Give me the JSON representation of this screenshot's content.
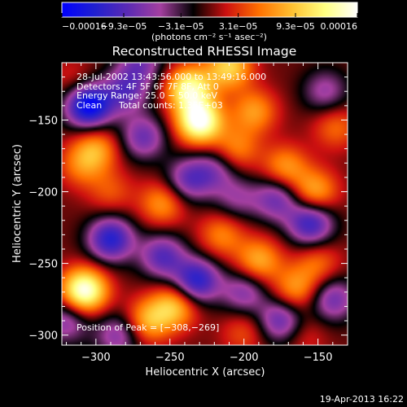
{
  "chart_data": {
    "type": "heatmap",
    "title": "Reconstructed RHESSI Image",
    "xlabel": "Heliocentric X (arcsec)",
    "ylabel": "Heliocentric Y (arcsec)",
    "xlim": [
      -323,
      -130
    ],
    "ylim": [
      -307,
      -110
    ],
    "xticks": [
      -300,
      -250,
      -200,
      -150
    ],
    "yticks": [
      -300,
      -250,
      -200,
      -150
    ],
    "xtick_labels": [
      "−300",
      "−250",
      "−200",
      "−150"
    ],
    "ytick_labels": [
      "−300",
      "−250",
      "−200",
      "−150"
    ],
    "colorbar": {
      "min": -0.00016,
      "max": 0.00016,
      "ticks": [
        -0.00016,
        -9.3e-05,
        -3.1e-05,
        3.1e-05,
        9.3e-05,
        0.00016
      ],
      "tick_labels": [
        "−0.00016",
        "−9.3e−05",
        "−3.1e−05",
        "3.1e−05",
        "9.3e−05",
        "0.00016"
      ],
      "unit_label": "(photons cm⁻² s⁻¹ asec⁻²)",
      "colors": [
        "#0000ff",
        "#2020d0",
        "#5a2ab4",
        "#a43fa0",
        "#000000",
        "#cc1010",
        "#ff7000",
        "#ffc030",
        "#ffff80",
        "#ffffff"
      ]
    },
    "annotations": {
      "time_range": "28-Jul-2002 13:43:56.000 to 13:49:16.000",
      "detectors": "Detectors: 4F 5F 6F 7F 8F, Att 0",
      "energy": "Energy Range: 25.0 − 50.0 keV",
      "method": "Clean",
      "total_counts": "Total counts: 1.35E+03",
      "peak": "Position of Peak = [−308,−269]"
    },
    "peak_position": [
      -308,
      -269
    ],
    "hotspots": [
      {
        "x": -230,
        "y": -151,
        "value": 0.00016
      },
      {
        "x": -237,
        "y": -128,
        "value": 0.00013
      },
      {
        "x": -210,
        "y": -113,
        "value": 0.0001
      },
      {
        "x": -308,
        "y": -269,
        "value": 0.00016
      },
      {
        "x": -247,
        "y": -280,
        "value": 9e-05
      },
      {
        "x": -265,
        "y": -290,
        "value": 8e-05
      },
      {
        "x": -255,
        "y": -208,
        "value": 7e-05
      },
      {
        "x": -215,
        "y": -230,
        "value": 6e-05
      },
      {
        "x": -190,
        "y": -248,
        "value": 8e-05
      },
      {
        "x": -172,
        "y": -183,
        "value": 7e-05
      },
      {
        "x": -152,
        "y": -200,
        "value": 8e-05
      },
      {
        "x": -138,
        "y": -155,
        "value": 5e-05
      },
      {
        "x": -193,
        "y": -144,
        "value": 7e-05
      },
      {
        "x": -205,
        "y": -170,
        "value": 6e-05
      },
      {
        "x": -150,
        "y": -250,
        "value": 5e-05
      },
      {
        "x": -165,
        "y": -268,
        "value": 7e-05
      },
      {
        "x": -290,
        "y": -200,
        "value": 4e-05
      },
      {
        "x": -300,
        "y": -170,
        "value": 7e-05
      },
      {
        "x": -310,
        "y": -182,
        "value": 5e-05
      },
      {
        "x": -315,
        "y": -123,
        "value": 3e-05
      },
      {
        "x": -200,
        "y": -298,
        "value": 4e-05
      },
      {
        "x": -160,
        "y": -300,
        "value": 3e-05
      },
      {
        "x": -305,
        "y": -140,
        "value": -0.00016
      },
      {
        "x": -280,
        "y": -130,
        "value": -8e-05
      },
      {
        "x": -290,
        "y": -233,
        "value": -0.00012
      },
      {
        "x": -232,
        "y": -262,
        "value": -0.00012
      },
      {
        "x": -255,
        "y": -245,
        "value": -9e-05
      },
      {
        "x": -178,
        "y": -205,
        "value": -8e-05
      },
      {
        "x": -155,
        "y": -222,
        "value": -0.00011
      },
      {
        "x": -238,
        "y": -192,
        "value": -8e-05
      },
      {
        "x": -220,
        "y": -185,
        "value": -6e-05
      },
      {
        "x": -268,
        "y": -162,
        "value": -8e-05
      },
      {
        "x": -200,
        "y": -270,
        "value": -7e-05
      },
      {
        "x": -175,
        "y": -290,
        "value": -9e-05
      },
      {
        "x": -140,
        "y": -275,
        "value": -8e-05
      },
      {
        "x": -270,
        "y": -110,
        "value": -7e-05
      },
      {
        "x": -145,
        "y": -130,
        "value": -6e-05
      },
      {
        "x": -320,
        "y": -290,
        "value": -7e-05
      },
      {
        "x": -285,
        "y": -300,
        "value": -7e-05
      },
      {
        "x": -205,
        "y": -205,
        "value": -5e-05
      }
    ]
  },
  "footer": {
    "timestamp": "19-Apr-2013 16:22"
  }
}
